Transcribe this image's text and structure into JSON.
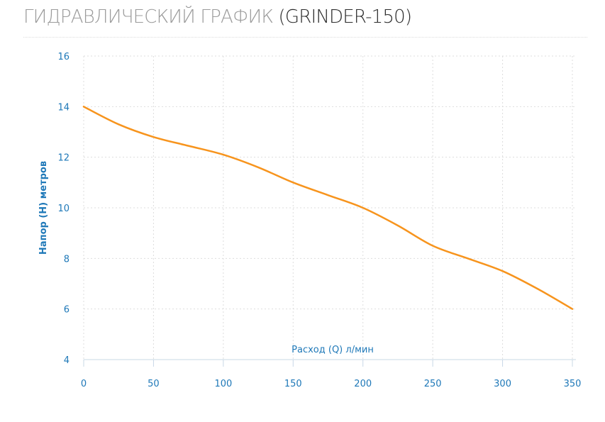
{
  "header": {
    "title_main": "ГИДРАВЛИЧЕСКИЙ ГРАФИК ",
    "title_model": "(GRINDER-150)"
  },
  "colors": {
    "title": "#9b9b9b",
    "model": "#2b2b2b",
    "axis_text": "#1e78b8",
    "line": "#f7941d",
    "grid": "#dddddd"
  },
  "chart_data": {
    "type": "line",
    "title": "ГИДРАВЛИЧЕСКИЙ ГРАФИК (GRINDER-150)",
    "xlabel": "Расход (Q) л/мин",
    "ylabel": "Напор (H) метров",
    "xlim": [
      0,
      350
    ],
    "ylim": [
      4,
      16
    ],
    "x_ticks": [
      0,
      50,
      100,
      150,
      200,
      250,
      300,
      350
    ],
    "y_ticks": [
      4,
      6,
      8,
      10,
      12,
      14,
      16
    ],
    "grid": true,
    "series": [
      {
        "x": [
          0,
          25,
          50,
          75,
          100,
          125,
          150,
          175,
          200,
          225,
          250,
          275,
          300,
          325,
          350
        ],
        "y": [
          14,
          13.3,
          12.8,
          12.45,
          12.1,
          11.6,
          11.0,
          10.5,
          10.0,
          9.3,
          8.5,
          8.0,
          7.5,
          6.8,
          6.0
        ]
      }
    ]
  }
}
